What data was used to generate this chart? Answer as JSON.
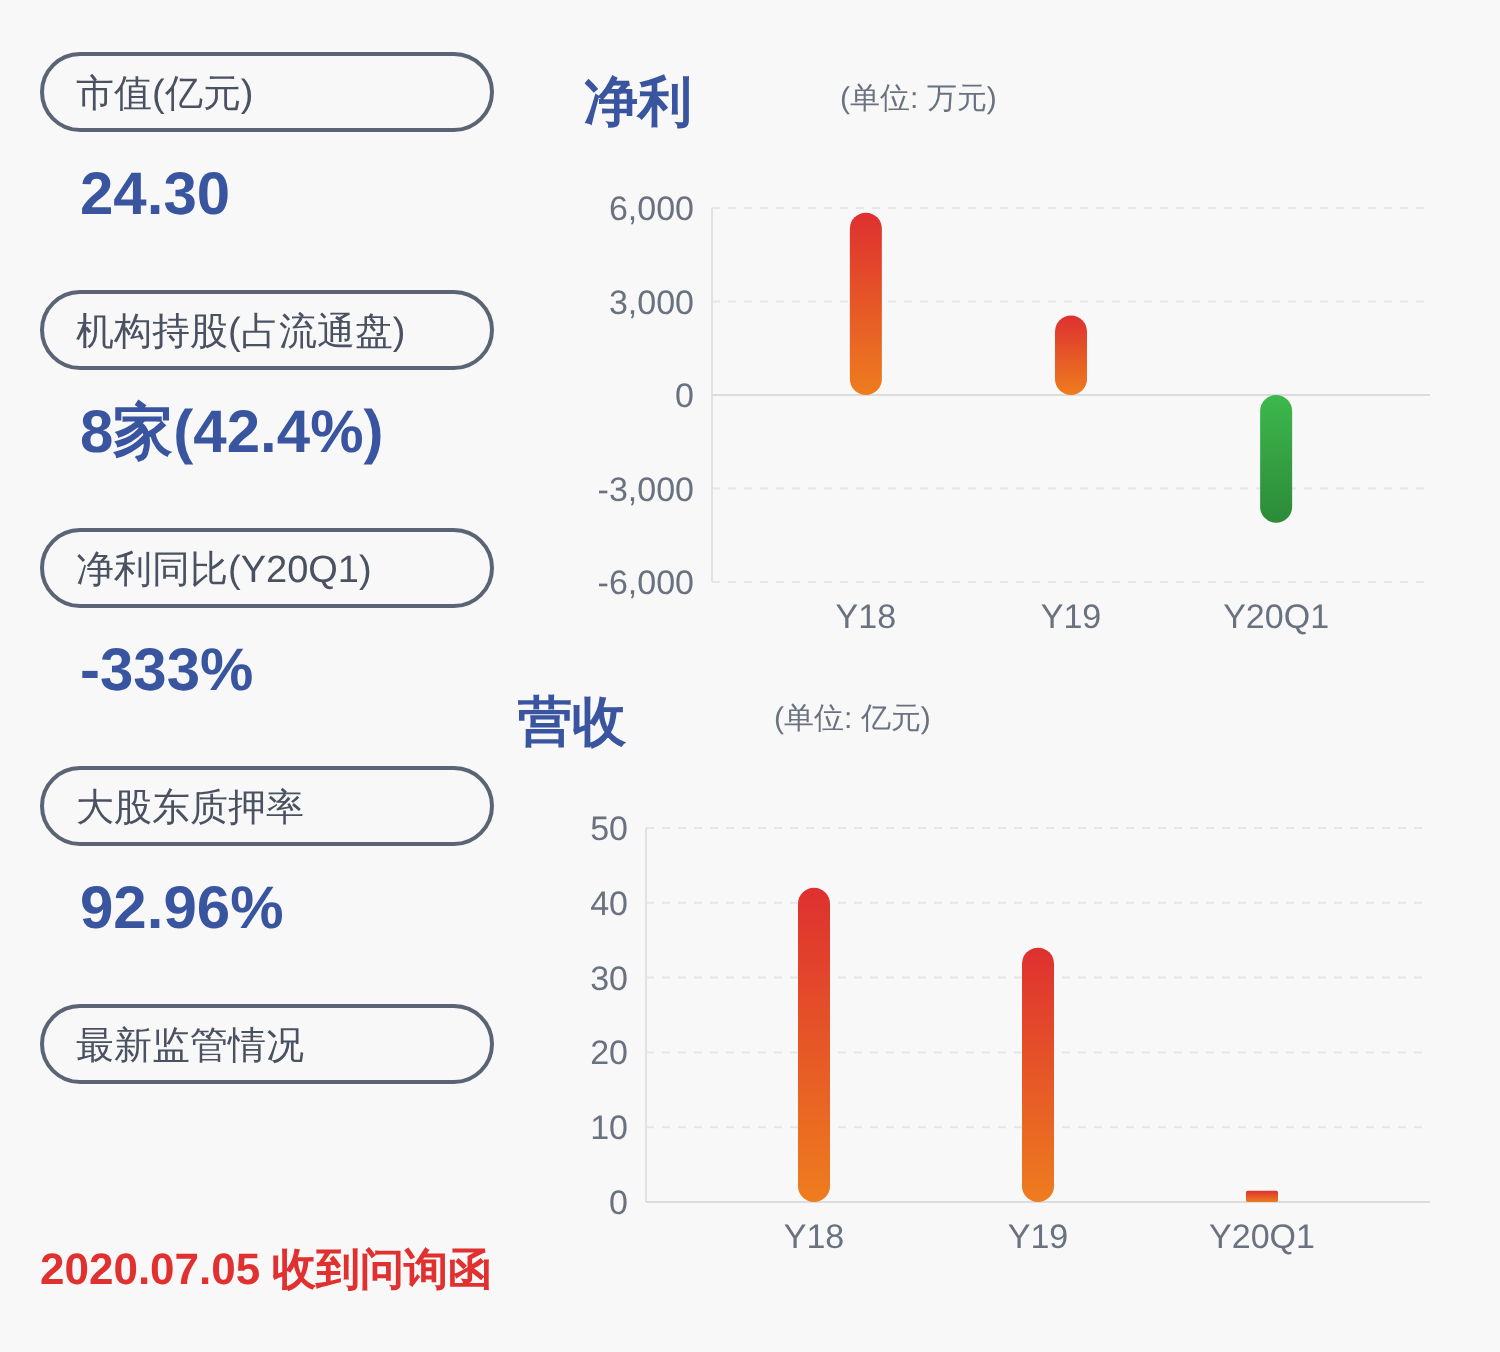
{
  "chart_data": [
    {
      "type": "other",
      "annotations": [
        "市值(亿元)",
        "24.30",
        "机构持股(占流通盘)",
        "8家(42.4%)",
        "净利同比(Y20Q1)",
        "-333%",
        "大股东质押率",
        "92.96%",
        "最新监管情况",
        "2020.07.05 收到问询函"
      ]
    },
    {
      "type": "bar",
      "title": "净利",
      "subtitle": "(单位: 万元)",
      "categories": [
        "Y18",
        "Y19",
        "Y20Q1"
      ],
      "values": [
        5850,
        2550,
        -4100
      ],
      "colors": [
        "#de3030",
        "#de3030",
        "#3cb84c"
      ],
      "ylim": [
        -6000,
        6000
      ],
      "yticks": [
        {
          "value": 6000,
          "label": "6,000"
        },
        {
          "value": 3000,
          "label": "3,000"
        },
        0,
        {
          "value": -3000,
          "label": "-3,000"
        },
        {
          "value": -6000,
          "label": "-6,000"
        }
      ],
      "grid": "y"
    },
    {
      "type": "bar",
      "title": "营收",
      "subtitle": "(单位: 亿元)",
      "categories": [
        "Y18",
        "Y19",
        "Y20Q1"
      ],
      "values": [
        42,
        34,
        1.5
      ],
      "colors": [
        "#de3030",
        "#de3030",
        "#de3030"
      ],
      "ylim": [
        0,
        50
      ],
      "yticks": [
        0,
        10,
        20,
        30,
        40,
        50
      ],
      "grid": "y"
    }
  ]
}
